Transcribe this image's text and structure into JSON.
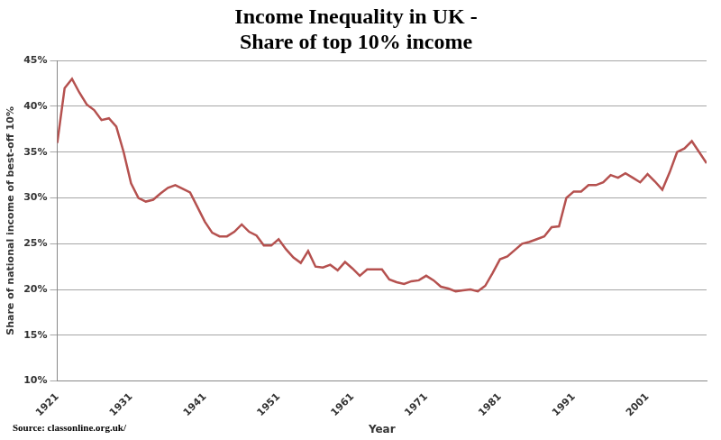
{
  "chart_data": {
    "type": "line",
    "title": [
      "Income Inequality in UK -",
      "Share of top 10% income"
    ],
    "x_label": "Year",
    "y_label": "Share of national income of best-off 10%",
    "source": "Source: classonline.org.uk/",
    "x": [
      1921,
      1922,
      1923,
      1924,
      1925,
      1926,
      1927,
      1928,
      1929,
      1930,
      1931,
      1932,
      1933,
      1934,
      1935,
      1936,
      1937,
      1938,
      1939,
      1940,
      1941,
      1942,
      1943,
      1944,
      1945,
      1946,
      1947,
      1948,
      1949,
      1950,
      1951,
      1952,
      1953,
      1954,
      1955,
      1956,
      1957,
      1958,
      1959,
      1960,
      1961,
      1962,
      1963,
      1964,
      1965,
      1966,
      1967,
      1968,
      1969,
      1970,
      1971,
      1972,
      1973,
      1974,
      1975,
      1976,
      1977,
      1978,
      1979,
      1980,
      1981,
      1982,
      1983,
      1984,
      1985,
      1986,
      1987,
      1988,
      1989,
      1990,
      1991,
      1992,
      1993,
      1994,
      1995,
      1996,
      1997,
      1998,
      1999,
      2000,
      2001,
      2002,
      2003,
      2004,
      2005,
      2006,
      2007,
      2008,
      2009
    ],
    "values": [
      36,
      42,
      43,
      41.5,
      40.2,
      39.6,
      38.5,
      38.7,
      37.8,
      35,
      31.6,
      30,
      29.6,
      29.8,
      30.5,
      31.1,
      31.4,
      31,
      30.6,
      29,
      27.4,
      26.2,
      25.8,
      25.8,
      26.3,
      27.1,
      26.3,
      25.9,
      24.8,
      24.8,
      25.5,
      24.4,
      23.5,
      22.9,
      24.2,
      22.5,
      22.4,
      22.7,
      22.1,
      23,
      22.3,
      21.5,
      22.2,
      22.2,
      22.2,
      21.1,
      20.8,
      20.6,
      20.9,
      21,
      21.5,
      21,
      20.3,
      20.1,
      19.8,
      19.9,
      20,
      19.8,
      20.4,
      21.8,
      23.3,
      23.6,
      24.3,
      25,
      25.2,
      25.5,
      25.8,
      26.8,
      26.9,
      30,
      30.7,
      30.7,
      31.4,
      31.4,
      31.7,
      32.5,
      32.2,
      32.7,
      32.2,
      31.7,
      32.6,
      31.8,
      30.9,
      32.8,
      35,
      35.4,
      36.2,
      35,
      33.8
    ],
    "color": "#b5514f",
    "xlim": [
      1921,
      2009
    ],
    "xticks": [
      1921,
      1931,
      1941,
      1951,
      1961,
      1971,
      1981,
      1991,
      2001
    ],
    "ylim": [
      10,
      45
    ],
    "yticks": [
      {
        "value": 10,
        "label": "10%"
      },
      {
        "value": 15,
        "label": "15%"
      },
      {
        "value": 20,
        "label": "20%"
      },
      {
        "value": 25,
        "label": "25%"
      },
      {
        "value": 30,
        "label": "30%"
      },
      {
        "value": 35,
        "label": "35%"
      },
      {
        "value": 40,
        "label": "40%"
      },
      {
        "value": 45,
        "label": "45%"
      }
    ],
    "grid": true
  }
}
